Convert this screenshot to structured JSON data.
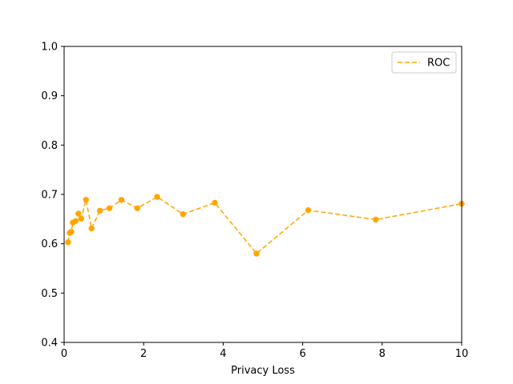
{
  "chart_data": {
    "type": "line",
    "title": "",
    "xlabel": "Privacy Loss",
    "ylabel": "",
    "xlim": [
      0,
      10
    ],
    "ylim": [
      0.4,
      1.0
    ],
    "xticks": [
      "0",
      "2",
      "4",
      "6",
      "8",
      "10"
    ],
    "yticks": [
      "0.4",
      "0.5",
      "0.6",
      "0.7",
      "0.8",
      "0.9",
      "1.0"
    ],
    "grid": false,
    "legend": {
      "position": "top-right",
      "entries": [
        "ROC"
      ]
    },
    "series": [
      {
        "name": "ROC",
        "color": "#ffa500",
        "line_style": "dashed",
        "marker": "circle",
        "points": [
          [
            0.1,
            0.603
          ],
          [
            0.14,
            0.622
          ],
          [
            0.18,
            0.624
          ],
          [
            0.22,
            0.643
          ],
          [
            0.29,
            0.646
          ],
          [
            0.36,
            0.661
          ],
          [
            0.43,
            0.651
          ],
          [
            0.55,
            0.689
          ],
          [
            0.69,
            0.631
          ],
          [
            0.9,
            0.667
          ],
          [
            1.14,
            0.672
          ],
          [
            1.44,
            0.689
          ],
          [
            1.84,
            0.672
          ],
          [
            2.34,
            0.695
          ],
          [
            2.99,
            0.66
          ],
          [
            3.79,
            0.683
          ],
          [
            4.84,
            0.58
          ],
          [
            6.14,
            0.668
          ],
          [
            7.84,
            0.649
          ],
          [
            10.0,
            0.681
          ]
        ]
      }
    ]
  }
}
